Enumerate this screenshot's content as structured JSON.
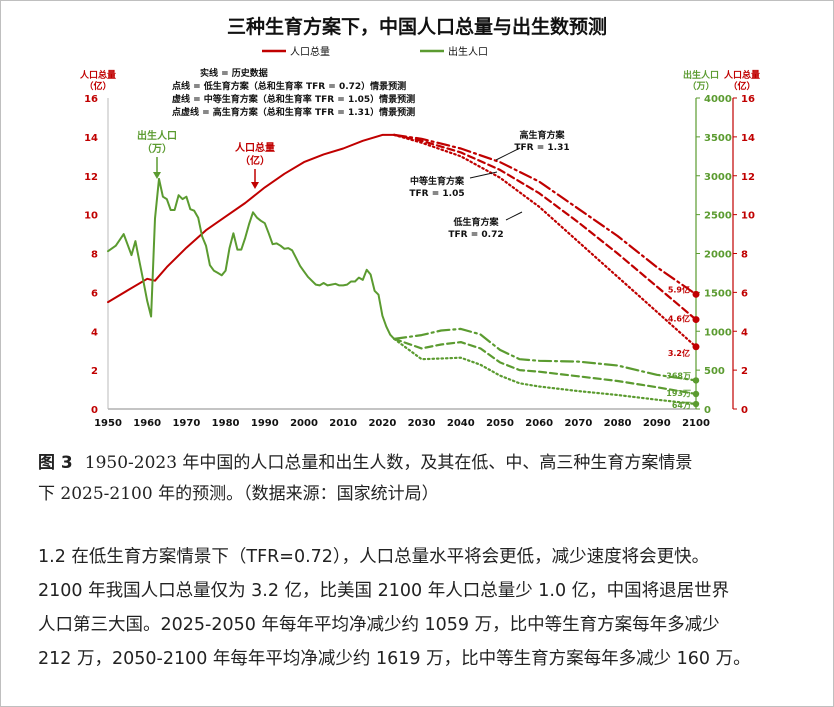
{
  "chart_data": {
    "type": "line",
    "title": "三种生育方案下，中国人口总量与出生数预测",
    "legend": [
      {
        "name": "人口总量",
        "color": "#c00000"
      },
      {
        "name": "出生人口",
        "color": "#5b9b30"
      }
    ],
    "legend_notes": [
      "实线 = 历史数据",
      "点线 = 低生育方案（总和生育率 TFR = 0.72）情景预测",
      "虚线 = 中等生育方案（总和生育率 TFR = 1.05）情景预测",
      "点虚线 = 高生育方案（总和生育率 TFR = 1.31）情景预测"
    ],
    "left_axis_label": [
      "人口总量",
      "（亿）"
    ],
    "right_axis_labels": {
      "births": [
        "出生人口",
        "（万）"
      ],
      "population": [
        "人口总量",
        "（亿）"
      ]
    },
    "x_ticks": [
      1950,
      1960,
      1970,
      1980,
      1990,
      2000,
      2010,
      2020,
      2030,
      2040,
      2050,
      2060,
      2070,
      2080,
      2090,
      2100
    ],
    "y_left_ticks": [
      0,
      2,
      4,
      6,
      8,
      10,
      12,
      14,
      16
    ],
    "y_right_births_ticks": [
      0,
      500,
      1000,
      1500,
      2000,
      2500,
      3000,
      3500,
      4000
    ],
    "y_right_pop_ticks": [
      0,
      2,
      4,
      6,
      8,
      10,
      12,
      14,
      16
    ],
    "ylim_population": [
      0,
      16
    ],
    "ylim_births": [
      0,
      4000
    ],
    "xlim": [
      1950,
      2100
    ],
    "annotations": {
      "births_label": [
        "出生人口",
        "（万）"
      ],
      "pop_label": [
        "人口总量",
        "（亿）"
      ],
      "high": [
        "高生育方案",
        "TFR = 1.31"
      ],
      "medium": [
        "中等生育方案",
        "TFR = 1.05"
      ],
      "low": [
        "低生育方案",
        "TFR = 0.72"
      ],
      "pop_end": [
        "5.9亿",
        "4.6亿",
        "3.2亿"
      ],
      "births_end": [
        "368万",
        "193万",
        "64万"
      ]
    },
    "series": [
      {
        "name": "人口总量",
        "axis": "population",
        "style": "solid",
        "x": [
          1950,
          1955,
          1960,
          1962,
          1965,
          1970,
          1975,
          1980,
          1985,
          1990,
          1995,
          2000,
          2005,
          2010,
          2015,
          2020,
          2023
        ],
        "values": [
          5.5,
          6.1,
          6.7,
          6.6,
          7.3,
          8.3,
          9.2,
          9.9,
          10.6,
          11.4,
          12.1,
          12.7,
          13.1,
          13.4,
          13.8,
          14.1,
          14.1
        ]
      },
      {
        "name": "人口总量 高生育方案",
        "axis": "population",
        "style": "dashdot",
        "x": [
          2023,
          2030,
          2040,
          2050,
          2060,
          2070,
          2080,
          2090,
          2100
        ],
        "values": [
          14.1,
          13.9,
          13.4,
          12.7,
          11.7,
          10.3,
          8.9,
          7.3,
          5.9
        ]
      },
      {
        "name": "人口总量 中等生育方案",
        "axis": "population",
        "style": "dashed",
        "x": [
          2023,
          2030,
          2040,
          2050,
          2060,
          2070,
          2080,
          2090,
          2100
        ],
        "values": [
          14.1,
          13.8,
          13.2,
          12.3,
          11.1,
          9.6,
          8.0,
          6.3,
          4.6
        ]
      },
      {
        "name": "人口总量 低生育方案",
        "axis": "population",
        "style": "dotted",
        "x": [
          2023,
          2030,
          2040,
          2050,
          2060,
          2070,
          2080,
          2090,
          2100
        ],
        "values": [
          14.1,
          13.7,
          13.0,
          11.9,
          10.4,
          8.6,
          6.8,
          5.0,
          3.2
        ]
      },
      {
        "name": "出生人口",
        "axis": "births",
        "style": "solid",
        "x": [
          1950,
          1952,
          1954,
          1956,
          1957,
          1958,
          1959,
          1960,
          1961,
          1962,
          1963,
          1964,
          1965,
          1966,
          1967,
          1968,
          1969,
          1970,
          1971,
          1972,
          1973,
          1974,
          1975,
          1976,
          1977,
          1978,
          1979,
          1980,
          1981,
          1982,
          1983,
          1984,
          1985,
          1986,
          1987,
          1988,
          1989,
          1990,
          1991,
          1992,
          1993,
          1994,
          1995,
          1996,
          1997,
          1998,
          1999,
          2000,
          2001,
          2002,
          2003,
          2004,
          2005,
          2006,
          2007,
          2008,
          2009,
          2010,
          2011,
          2012,
          2013,
          2014,
          2015,
          2016,
          2017,
          2018,
          2019,
          2020,
          2021,
          2022,
          2023
        ],
        "values": [
          2030,
          2100,
          2250,
          1980,
          2160,
          1900,
          1650,
          1390,
          1190,
          2450,
          2960,
          2730,
          2700,
          2560,
          2560,
          2750,
          2700,
          2730,
          2570,
          2550,
          2460,
          2220,
          2100,
          1850,
          1780,
          1750,
          1720,
          1780,
          2070,
          2260,
          2050,
          2050,
          2200,
          2380,
          2530,
          2460,
          2420,
          2390,
          2260,
          2120,
          2130,
          2100,
          2060,
          2070,
          2040,
          1940,
          1840,
          1770,
          1700,
          1650,
          1600,
          1590,
          1620,
          1590,
          1600,
          1610,
          1590,
          1590,
          1600,
          1640,
          1640,
          1690,
          1660,
          1790,
          1730,
          1520,
          1470,
          1200,
          1060,
          956,
          902
        ]
      },
      {
        "name": "出生人口 高生育方案",
        "axis": "births",
        "style": "dashdot",
        "x": [
          2023,
          2030,
          2035,
          2040,
          2045,
          2050,
          2055,
          2060,
          2070,
          2080,
          2090,
          2100
        ],
        "values": [
          902,
          950,
          1010,
          1030,
          960,
          760,
          640,
          620,
          610,
          560,
          440,
          368
        ]
      },
      {
        "name": "出生人口 中等生育方案",
        "axis": "births",
        "style": "dashed",
        "x": [
          2023,
          2030,
          2035,
          2040,
          2045,
          2050,
          2055,
          2060,
          2070,
          2080,
          2090,
          2100
        ],
        "values": [
          902,
          780,
          830,
          860,
          780,
          600,
          500,
          480,
          420,
          360,
          280,
          193
        ]
      },
      {
        "name": "出生人口 低生育方案",
        "axis": "births",
        "style": "dotted",
        "x": [
          2023,
          2030,
          2035,
          2040,
          2045,
          2050,
          2055,
          2060,
          2070,
          2080,
          2090,
          2100
        ],
        "values": [
          902,
          640,
          650,
          660,
          570,
          430,
          330,
          290,
          230,
          180,
          120,
          64
        ]
      }
    ]
  },
  "caption": {
    "label": "图 3",
    "line1": "1950-2023 年中国的人口总量和出生人数，及其在低、中、高三种生育方案情景",
    "line2": "下 2025-2100 年的预测。（数据来源：国家统计局）"
  },
  "paragraph": {
    "lines": [
      "1.2 在低生育方案情景下（TFR=0.72），人口总量水平将会更低，减少速度将会更快。",
      "2100 年我国人口总量仅为 3.2 亿，比美国 2100 年人口总量少 1.0 亿，中国将退居世界",
      "人口第三大国。2025-2050 年每年平均净减少约 1059 万，比中等生育方案每年多减少",
      "212 万，2050-2100 年每年平均净减少约 1619 万，比中等生育方案每年多减少 160 万。"
    ]
  }
}
